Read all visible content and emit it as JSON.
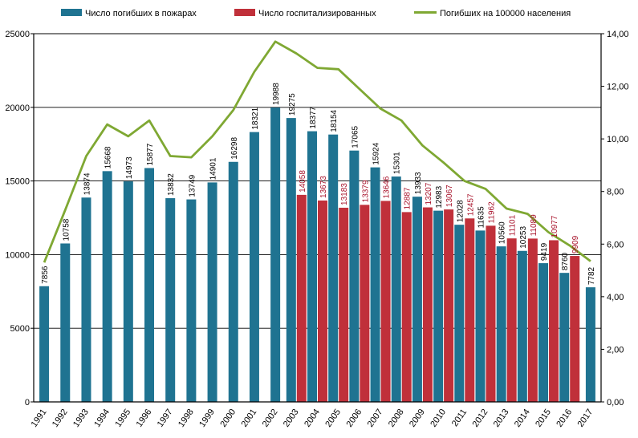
{
  "chart_data": {
    "type": "bar",
    "categories": [
      "1991",
      "1992",
      "1993",
      "1994",
      "1995",
      "1996",
      "1997",
      "1998",
      "1999",
      "2000",
      "2001",
      "2002",
      "2003",
      "2004",
      "2005",
      "2006",
      "2007",
      "2008",
      "2009",
      "2010",
      "2011",
      "2012",
      "2013",
      "2014",
      "2015",
      "2016",
      "2017"
    ],
    "series": [
      {
        "name": "Число погибших в пожарах",
        "kind": "bar",
        "axis": "left",
        "color": "#1f7391",
        "label_color": "#000000",
        "values": [
          7856,
          10758,
          13874,
          15668,
          14973,
          15877,
          13832,
          13749,
          14901,
          16298,
          18321,
          19988,
          19275,
          18377,
          18154,
          17065,
          15924,
          15301,
          13933,
          12983,
          12028,
          11635,
          10560,
          10253,
          9419,
          8760,
          7782
        ]
      },
      {
        "name": "Число госпитализированных",
        "kind": "bar",
        "axis": "left",
        "color": "#c0303a",
        "label_color": "#a8132b",
        "values": [
          null,
          null,
          null,
          null,
          null,
          null,
          null,
          null,
          null,
          null,
          null,
          null,
          14058,
          13673,
          13183,
          13379,
          13646,
          12887,
          13207,
          13067,
          12457,
          11962,
          11101,
          11089,
          10977,
          9909,
          null
        ]
      },
      {
        "name": "Погибших на 100000 населения",
        "kind": "line",
        "axis": "right",
        "color": "#7fa833",
        "values": [
          5.3,
          7.3,
          9.35,
          10.55,
          10.1,
          10.7,
          9.35,
          9.3,
          10.1,
          11.1,
          12.55,
          13.7,
          13.25,
          12.7,
          12.65,
          11.9,
          11.15,
          10.7,
          9.75,
          9.1,
          8.4,
          8.1,
          7.35,
          7.15,
          6.45,
          5.95,
          5.35
        ]
      }
    ],
    "y_left": {
      "min": 0,
      "max": 25000,
      "ticks": [
        "0",
        "5000",
        "10000",
        "15000",
        "20000",
        "25000"
      ]
    },
    "y_right": {
      "min": 0,
      "max": 14,
      "ticks": [
        "0,00",
        "2,00",
        "4,00",
        "6,00",
        "8,00",
        "10,00",
        "12,00",
        "14,00"
      ]
    },
    "legend": {
      "position": "top",
      "entries": [
        "Число погибших в пожарах",
        "Число госпитализированных",
        "Погибших на 100000 населения"
      ]
    },
    "grid": "horizontal",
    "title": "",
    "xlabel": "",
    "ylabel": ""
  }
}
